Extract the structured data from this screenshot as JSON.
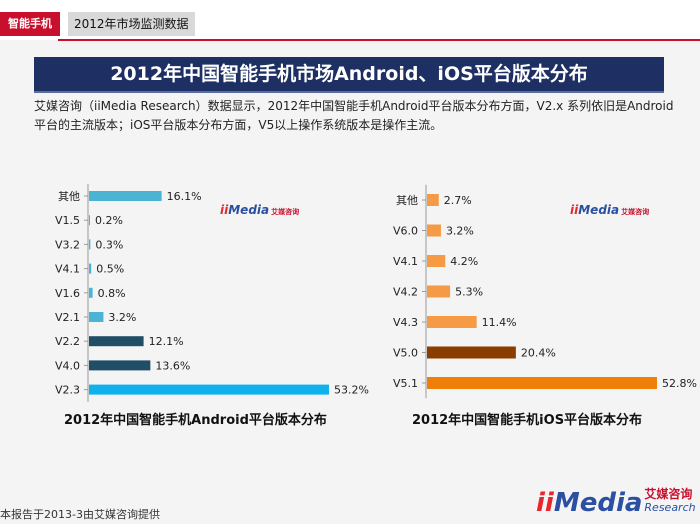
{
  "header": {
    "tag": "智能手机",
    "section": "2012年市场监测数据"
  },
  "title": "2012年中国智能手机市场Android、iOS平台版本分布",
  "intro": "艾媒咨询（iiMedia Research）数据显示，2012年中国智能手机Android平台版本分布方面，V2.x 系列依旧是Android平台的主流版本；iOS平台版本分布方面，V5以上操作系统版本是操作主流。",
  "watermark": {
    "i": "ii",
    "m": "Media",
    "tag": "艾媒咨询"
  },
  "colors": {
    "title_banner": "#1d2f63",
    "accent_red": "#c8102e",
    "android_light": "#4bb3d4",
    "android_dark": "#1f4e66",
    "android_bright": "#10b2ee",
    "ios_light": "#f59a45",
    "ios_dark": "#8a3d00",
    "ios_bright": "#f07f0a"
  },
  "chart_data": [
    {
      "type": "bar",
      "orientation": "horizontal",
      "title": "2012年中国智能手机Android平台版本分布",
      "categories": [
        "其他",
        "V1.5",
        "V3.2",
        "V4.1",
        "V1.6",
        "V2.1",
        "V2.2",
        "V4.0",
        "V2.3"
      ],
      "values": [
        16.1,
        0.2,
        0.3,
        0.5,
        0.8,
        3.2,
        12.1,
        13.6,
        53.2
      ],
      "labels": [
        "16.1%",
        "0.2%",
        "0.3%",
        "0.5%",
        "0.8%",
        "3.2%",
        "12.1%",
        "13.6%",
        "53.2%"
      ],
      "bar_colors": [
        "#4bb3d4",
        "#4bb3d4",
        "#4bb3d4",
        "#4bb3d4",
        "#4bb3d4",
        "#4bb3d4",
        "#1f4e66",
        "#1f4e66",
        "#10b2ee"
      ],
      "xlim": [
        0,
        53.2
      ],
      "grid": false,
      "legend": false
    },
    {
      "type": "bar",
      "orientation": "horizontal",
      "title": "2012年中国智能手机iOS平台版本分布",
      "categories": [
        "其他",
        "V6.0",
        "V4.1",
        "V4.2",
        "V4.3",
        "V5.0",
        "V5.1"
      ],
      "values": [
        2.7,
        3.2,
        4.2,
        5.3,
        11.4,
        20.4,
        52.8
      ],
      "labels": [
        "2.7%",
        "3.2%",
        "4.2%",
        "5.3%",
        "11.4%",
        "20.4%",
        "52.8%"
      ],
      "bar_colors": [
        "#f59a45",
        "#f59a45",
        "#f59a45",
        "#f59a45",
        "#f59a45",
        "#8a3d00",
        "#f07f0a"
      ],
      "xlim": [
        0,
        52.8
      ],
      "grid": false,
      "legend": false
    }
  ],
  "footer": "本报告于2013-3由艾媒咨询提供",
  "logo": {
    "i": "ii",
    "m": "Media",
    "cn": "艾媒咨询",
    "en": "Research"
  }
}
